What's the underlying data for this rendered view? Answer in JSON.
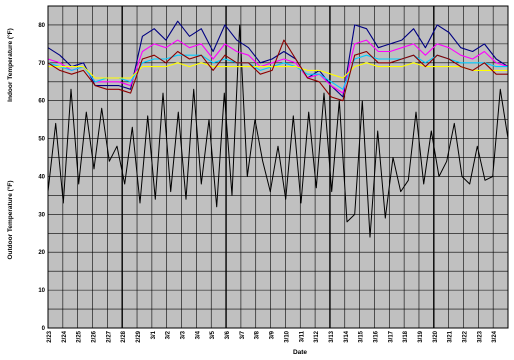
{
  "chart_data": {
    "type": "line",
    "title": "",
    "xlabel": "Date",
    "ylabel_left": "Outdoor Temperature (°F)",
    "ylabel_upper": "Indoor Temperature (°F)",
    "ylim": [
      0,
      85
    ],
    "y_ticks": [
      0,
      10,
      20,
      30,
      40,
      50,
      60,
      70,
      80
    ],
    "x_ticks": [
      "2/23",
      "2/24",
      "2/25",
      "2/26",
      "2/27",
      "2/28",
      "2/29",
      "3/1",
      "3/2",
      "3/3",
      "3/4",
      "3/5",
      "3/6",
      "3/7",
      "3/8",
      "3/9",
      "3/10",
      "3/11",
      "3/12",
      "3/13",
      "3/14",
      "3/15",
      "3/16",
      "3/17",
      "3/18",
      "3/19",
      "3/20",
      "3/21",
      "3/22",
      "3/23",
      "3/24"
    ],
    "grid": true,
    "background_color": "#c0c0c0",
    "series": [
      {
        "color": "#000000",
        "values": [
          36,
          54,
          33,
          63,
          38,
          57,
          42,
          58,
          44,
          48,
          38,
          53,
          33,
          56,
          34,
          62,
          36,
          57,
          34,
          63,
          38,
          55,
          32,
          62,
          35,
          80,
          40,
          55,
          44,
          36,
          48,
          34,
          56,
          33,
          57,
          37,
          62,
          36,
          60,
          28,
          30,
          60,
          24,
          52,
          29,
          45,
          36,
          39,
          57,
          38,
          52,
          40,
          44,
          54,
          40,
          38,
          48,
          39,
          40,
          63,
          50
        ]
      },
      {
        "color": "#000080",
        "values": [
          74,
          72,
          69,
          70,
          64,
          64,
          64,
          63,
          77,
          79,
          76,
          81,
          77,
          79,
          73,
          80,
          76,
          74,
          70,
          71,
          73,
          71,
          66,
          68,
          64,
          61,
          80,
          79,
          74,
          75,
          76,
          79,
          74,
          80,
          78,
          74,
          73,
          75,
          71,
          69
        ]
      },
      {
        "color": "#ff00ff",
        "values": [
          71,
          70,
          68,
          69,
          65,
          65,
          65,
          64,
          73,
          75,
          74,
          76,
          74,
          75,
          71,
          75,
          73,
          72,
          69,
          70,
          71,
          70,
          66,
          67,
          64,
          62,
          75,
          76,
          73,
          73,
          74,
          75,
          72,
          75,
          74,
          72,
          71,
          73,
          70,
          69
        ]
      },
      {
        "color": "#00ccff",
        "values": [
          70,
          69,
          68,
          69,
          65,
          66,
          66,
          65,
          70,
          71,
          71,
          72,
          72,
          72,
          70,
          71,
          70,
          70,
          68,
          69,
          70,
          69,
          67,
          67,
          65,
          63,
          71,
          72,
          71,
          71,
          71,
          72,
          70,
          72,
          71,
          70,
          70,
          70,
          69,
          69
        ]
      },
      {
        "color": "#ffff00",
        "values": [
          69,
          69,
          69,
          69,
          66,
          66,
          66,
          66,
          69,
          69,
          69,
          70,
          69,
          70,
          69,
          69,
          69,
          69,
          69,
          69,
          69,
          69,
          68,
          68,
          67,
          66,
          69,
          70,
          69,
          69,
          69,
          70,
          69,
          69,
          69,
          69,
          68,
          68,
          68,
          68
        ]
      },
      {
        "color": "#8b0000",
        "values": [
          70,
          68,
          67,
          68,
          64,
          63,
          63,
          62,
          71,
          72,
          70,
          73,
          71,
          72,
          68,
          72,
          70,
          70,
          67,
          68,
          76,
          71,
          66,
          65,
          61,
          60,
          72,
          73,
          70,
          70,
          71,
          72,
          69,
          72,
          71,
          69,
          68,
          70,
          67,
          67
        ]
      }
    ]
  }
}
